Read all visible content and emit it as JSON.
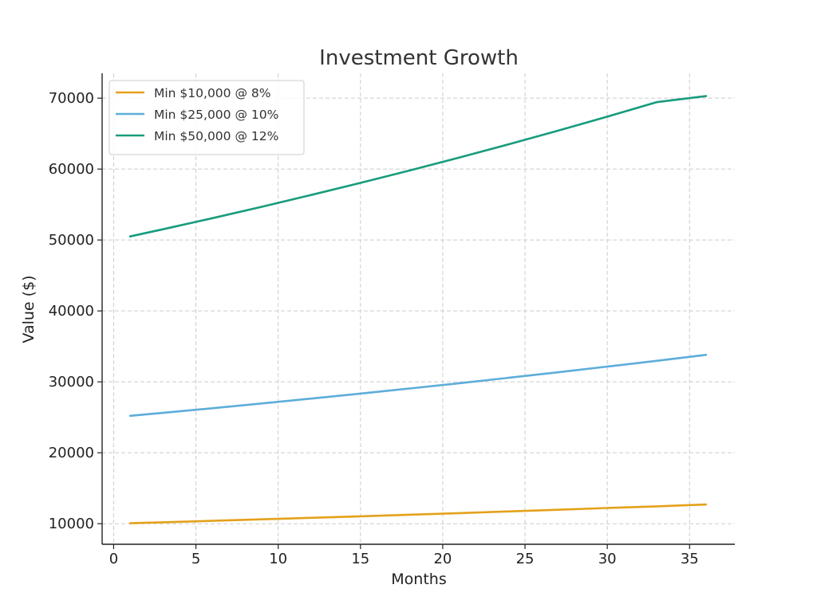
{
  "chart_data": {
    "type": "line",
    "title": "Investment Growth",
    "xlabel": "Months",
    "ylabel": "Value ($)",
    "xlim": [
      -0.7,
      37.75
    ],
    "ylim": [
      7100,
      73500
    ],
    "xticks": [
      0,
      5,
      10,
      15,
      20,
      25,
      30,
      35
    ],
    "yticks": [
      10000,
      20000,
      30000,
      40000,
      50000,
      60000,
      70000
    ],
    "xtick_labels": [
      "0",
      "5",
      "10",
      "15",
      "20",
      "25",
      "30",
      "35"
    ],
    "ytick_labels": [
      "10000",
      "20000",
      "30000",
      "40000",
      "50000",
      "60000",
      "70000"
    ],
    "grid": true,
    "legend_position": "top-left",
    "x": [
      1,
      3,
      6,
      9,
      12,
      15,
      18,
      21,
      24,
      27,
      30,
      33,
      36
    ],
    "series": [
      {
        "name": "Min $10,000 @ 8%",
        "color": "#E4A11B",
        "values": [
          10067,
          10202,
          10407,
          10616,
          10830,
          11047,
          11270,
          11496,
          11729,
          11965,
          12208,
          12452,
          12702
        ]
      },
      {
        "name": "Min $25,000 @ 10%",
        "color": "#5DADDA",
        "values": [
          25208,
          25630,
          26284,
          26954,
          27641,
          28346,
          29069,
          29810,
          30570,
          31350,
          32149,
          32968,
          33809
        ]
      },
      {
        "name": "Min $50,000 @ 12%",
        "color": "#179C7D",
        "values": [
          50500,
          51515,
          53076,
          54683,
          56341,
          58048,
          59807,
          61619,
          63486,
          65411,
          67393,
          69435,
          70290
        ]
      }
    ]
  }
}
